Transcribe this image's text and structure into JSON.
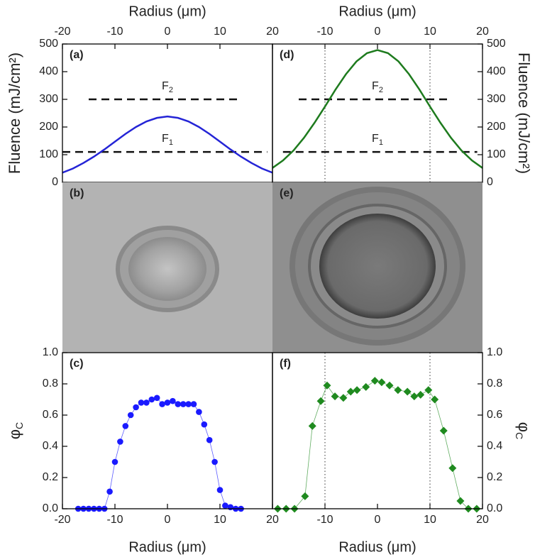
{
  "chart_data": [
    {
      "type": "line",
      "panel_label": "(a)",
      "xlabel": "Radius (μm)",
      "ylabel": "Fluence (mJ/cm²)",
      "xlim": [
        -20,
        20
      ],
      "xticks": [
        -20,
        -10,
        0,
        10,
        20
      ],
      "ylim": [
        0,
        500
      ],
      "yticks": [
        0,
        100,
        200,
        300,
        400,
        500
      ],
      "x": [
        -20,
        -18,
        -16,
        -14,
        -12,
        -10,
        -8,
        -6,
        -4,
        -2,
        0,
        2,
        4,
        6,
        8,
        10,
        12,
        14,
        16,
        18,
        20
      ],
      "values": [
        35,
        50,
        70,
        93,
        119,
        147,
        175,
        200,
        220,
        233,
        238,
        233,
        220,
        200,
        175,
        147,
        119,
        93,
        70,
        50,
        35
      ],
      "color": "#2424d6",
      "reference_lines": [
        {
          "label": "F",
          "subscript": "2",
          "value": 300,
          "xrange": [
            -15,
            14
          ]
        },
        {
          "label": "F",
          "subscript": "1",
          "value": 110,
          "xrange": [
            -20,
            19
          ]
        }
      ]
    },
    {
      "type": "image",
      "panel_label": "(b)"
    },
    {
      "type": "scatter",
      "panel_label": "(c)",
      "xlabel": "Radius (μm)",
      "ylabel": "φ",
      "ylabel_subscript": "C",
      "xlim": [
        -20,
        20
      ],
      "xticks": [
        -20,
        -10,
        0,
        10,
        20
      ],
      "ylim": [
        0,
        1
      ],
      "yticks": [
        {
          "value": 0,
          "label": "0.0"
        },
        0.2,
        0.4,
        0.6,
        0.8,
        {
          "value": 1,
          "label": "1.0"
        }
      ],
      "x": [
        -17,
        -16,
        -15,
        -14,
        -13,
        -12,
        -11,
        -10,
        -9,
        -8,
        -7,
        -6,
        -5,
        -4,
        -3,
        -2,
        -1,
        0,
        1,
        2,
        3,
        4,
        5,
        6,
        7,
        8,
        9,
        10,
        11,
        12,
        13,
        14
      ],
      "values": [
        0,
        0,
        0,
        0,
        0,
        0,
        0.11,
        0.3,
        0.43,
        0.53,
        0.6,
        0.65,
        0.68,
        0.68,
        0.7,
        0.71,
        0.67,
        0.68,
        0.69,
        0.67,
        0.67,
        0.67,
        0.67,
        0.62,
        0.54,
        0.44,
        0.3,
        0.12,
        0.02,
        0.01,
        0,
        0
      ],
      "color": "#1a1aff",
      "marker": "circle"
    },
    {
      "type": "line",
      "panel_label": "(d)",
      "xlabel": "Radius (μm)",
      "ylabel": "Fluence (mJ/cm²)",
      "xlim": [
        -20,
        20
      ],
      "xticks": [
        -10,
        0,
        10,
        20
      ],
      "ylim": [
        0,
        500
      ],
      "yticks": [
        0,
        100,
        200,
        300,
        400,
        500
      ],
      "x": [
        -20,
        -18,
        -16,
        -14,
        -12,
        -10,
        -8,
        -6,
        -4,
        -2,
        0,
        2,
        4,
        6,
        8,
        10,
        12,
        14,
        16,
        18,
        20
      ],
      "values": [
        52,
        79,
        115,
        161,
        215,
        274,
        335,
        391,
        437,
        467,
        478,
        467,
        437,
        391,
        335,
        274,
        215,
        161,
        115,
        79,
        52
      ],
      "color": "#1e7b1e",
      "vlines": [
        -10,
        10
      ],
      "reference_lines": [
        {
          "label": "F",
          "subscript": "2",
          "value": 300,
          "xrange": [
            -15,
            14
          ]
        },
        {
          "label": "F",
          "subscript": "1",
          "value": 110,
          "xrange": [
            -18,
            19
          ]
        }
      ]
    },
    {
      "type": "image",
      "panel_label": "(e)"
    },
    {
      "type": "scatter",
      "panel_label": "(f)",
      "xlabel": "Radius (μm)",
      "ylabel": "φ",
      "ylabel_subscript": "C",
      "xlim": [
        -20,
        20
      ],
      "xticks": [
        -10,
        0,
        10,
        20
      ],
      "ylim": [
        0,
        1
      ],
      "yticks": [
        {
          "value": 0,
          "label": "0.0"
        },
        0.2,
        0.4,
        0.6,
        0.8,
        {
          "value": 1,
          "label": "1.0"
        }
      ],
      "x": [
        -19,
        -17.4,
        -15.8,
        -13.8,
        -12.4,
        -10.8,
        -9.6,
        -8.1,
        -6.5,
        -5.1,
        -3.9,
        -2.2,
        -0.5,
        0.8,
        2.3,
        3.9,
        5.7,
        7,
        8.2,
        9.7,
        10.9,
        12.6,
        14.3,
        15.8,
        17.3,
        18.9
      ],
      "values": [
        0,
        0,
        0,
        0.08,
        0.53,
        0.69,
        0.79,
        0.72,
        0.71,
        0.75,
        0.76,
        0.78,
        0.82,
        0.81,
        0.79,
        0.76,
        0.75,
        0.72,
        0.73,
        0.76,
        0.7,
        0.5,
        0.26,
        0.05,
        0,
        0
      ],
      "color": "#1f8a1f",
      "marker": "diamond",
      "vlines": [
        -10,
        10
      ]
    }
  ]
}
